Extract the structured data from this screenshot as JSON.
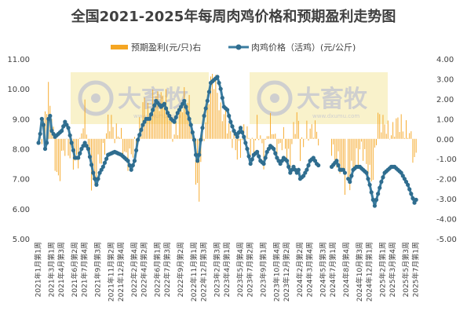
{
  "chart_data": {
    "type": "bar+line",
    "title": "全国2021-2025年每周肉鸡价格和预期盈利走势图",
    "legend": {
      "placement": "top",
      "entries": [
        "预期盈利(元/只)右",
        "肉鸡价格（活鸡）(元/公斤)"
      ]
    },
    "colors": {
      "profit_bar": "#f5a623",
      "price_line": "#3a7ca0",
      "price_marker": "#2f6d8f",
      "watermark_box": "#f7eeb9",
      "watermark": "#cfcfcf"
    },
    "watermarks": [
      {
        "text": "大畜牧",
        "sub": "www.dxumu.com"
      },
      {
        "text": "大畜牧",
        "sub": "www.dxumu.com"
      }
    ],
    "y_left": {
      "min": 5.0,
      "max": 11.0,
      "ticks": [
        "5.00",
        "6.00",
        "7.00",
        "8.00",
        "9.00",
        "10.00",
        "11.00"
      ]
    },
    "y_right": {
      "min": -5.0,
      "max": 4.0,
      "ticks": [
        "-5.00",
        "-4.00",
        "-3.00",
        "-2.00",
        "-1.00",
        "0.00",
        "1.00",
        "2.00",
        "3.00",
        "4.00"
      ]
    },
    "categories": [
      "2021年1月第1周",
      "2021年3月第1周",
      "2021年4月第3周",
      "2021年6月第2周",
      "2021年7月第4周",
      "2021年9月第3周",
      "2021年11月第2周",
      "2021年12月第4周",
      "2022年2月第4周",
      "2022年4月第2周",
      "2022年6月第1周",
      "2022年7月第3周",
      "2022年9月第2周",
      "2022年11月第1周",
      "2022年12月第3周",
      "2023年2月第3周",
      "2023年4月第1周",
      "2023年5月第4周",
      "2023年7月第2周",
      "2023年9月第1周",
      "2023年10月第4周",
      "2023年12月第2周",
      "2024年2月第2周",
      "2024年3月第4周",
      "2024年5月第3周",
      "2024年7月第1周",
      "2024年8月第4周",
      "2024年10月第3周",
      "2024年12月第1周",
      "2025年2月第1周",
      "2025年3月第4周",
      "2025年5月第3周",
      "2025年7月第1周"
    ],
    "category_positions": [
      0,
      8,
      14,
      22,
      28,
      36,
      44,
      50,
      58,
      64,
      72,
      78,
      86,
      94,
      100,
      108,
      114,
      122,
      128,
      136,
      144,
      150,
      158,
      164,
      172,
      178,
      186,
      194,
      200,
      208,
      214,
      222,
      228
    ],
    "n_weeks": 236,
    "price_gaps": [
      [
        170,
        176
      ],
      [
        186,
        186
      ]
    ],
    "price_keyframes": [
      [
        0,
        8.2
      ],
      [
        1,
        8.5
      ],
      [
        2,
        9.0
      ],
      [
        3,
        8.8
      ],
      [
        4,
        8.0
      ],
      [
        5,
        8.2
      ],
      [
        6,
        9.0
      ],
      [
        7,
        9.1
      ],
      [
        8,
        8.6
      ],
      [
        10,
        8.4
      ],
      [
        12,
        8.5
      ],
      [
        14,
        8.6
      ],
      [
        16,
        8.9
      ],
      [
        18,
        8.7
      ],
      [
        20,
        8.2
      ],
      [
        22,
        7.7
      ],
      [
        24,
        7.7
      ],
      [
        26,
        8.0
      ],
      [
        28,
        8.2
      ],
      [
        30,
        8.0
      ],
      [
        33,
        7.2
      ],
      [
        35,
        6.8
      ],
      [
        37,
        7.2
      ],
      [
        39,
        7.4
      ],
      [
        42,
        7.8
      ],
      [
        46,
        7.9
      ],
      [
        50,
        7.8
      ],
      [
        54,
        7.6
      ],
      [
        56,
        7.3
      ],
      [
        58,
        7.6
      ],
      [
        60,
        8.3
      ],
      [
        63,
        8.8
      ],
      [
        65,
        9.0
      ],
      [
        67,
        9.0
      ],
      [
        69,
        9.3
      ],
      [
        71,
        9.6
      ],
      [
        74,
        9.4
      ],
      [
        76,
        9.5
      ],
      [
        78,
        9.2
      ],
      [
        80,
        9.0
      ],
      [
        82,
        8.9
      ],
      [
        84,
        9.2
      ],
      [
        86,
        9.4
      ],
      [
        88,
        9.6
      ],
      [
        90,
        9.2
      ],
      [
        92,
        8.8
      ],
      [
        94,
        8.3
      ],
      [
        95,
        7.8
      ],
      [
        96,
        7.6
      ],
      [
        97,
        7.8
      ],
      [
        98,
        8.3
      ],
      [
        100,
        9.1
      ],
      [
        102,
        9.6
      ],
      [
        104,
        10.2
      ],
      [
        106,
        10.3
      ],
      [
        108,
        10.4
      ],
      [
        110,
        10.0
      ],
      [
        112,
        9.4
      ],
      [
        114,
        9.3
      ],
      [
        116,
        8.9
      ],
      [
        118,
        8.6
      ],
      [
        120,
        8.4
      ],
      [
        122,
        8.7
      ],
      [
        124,
        8.4
      ],
      [
        126,
        8.0
      ],
      [
        128,
        7.5
      ],
      [
        130,
        7.8
      ],
      [
        132,
        7.9
      ],
      [
        134,
        7.6
      ],
      [
        136,
        7.5
      ],
      [
        138,
        7.9
      ],
      [
        140,
        8.1
      ],
      [
        142,
        8.0
      ],
      [
        144,
        7.7
      ],
      [
        146,
        7.5
      ],
      [
        148,
        7.7
      ],
      [
        150,
        7.6
      ],
      [
        152,
        7.2
      ],
      [
        154,
        7.4
      ],
      [
        156,
        7.2
      ],
      [
        157,
        7.3
      ],
      [
        158,
        7.0
      ],
      [
        160,
        7.1
      ],
      [
        162,
        7.3
      ],
      [
        164,
        7.6
      ],
      [
        166,
        7.7
      ],
      [
        168,
        7.5
      ],
      [
        170,
        7.4
      ],
      [
        177,
        7.4
      ],
      [
        180,
        7.6
      ],
      [
        182,
        7.3
      ],
      [
        184,
        7.3
      ],
      [
        188,
        6.9
      ],
      [
        190,
        7.3
      ],
      [
        192,
        7.4
      ],
      [
        194,
        7.4
      ],
      [
        196,
        7.3
      ],
      [
        198,
        7.2
      ],
      [
        200,
        6.8
      ],
      [
        202,
        6.3
      ],
      [
        203,
        6.1
      ],
      [
        205,
        6.5
      ],
      [
        207,
        6.9
      ],
      [
        209,
        7.2
      ],
      [
        211,
        7.3
      ],
      [
        213,
        7.4
      ],
      [
        215,
        7.4
      ],
      [
        217,
        7.3
      ],
      [
        219,
        7.2
      ],
      [
        221,
        7.0
      ],
      [
        223,
        6.8
      ],
      [
        225,
        6.5
      ],
      [
        227,
        6.2
      ],
      [
        228,
        6.3
      ]
    ],
    "profit_keyframes": [
      [
        0,
        -0.5
      ],
      [
        2,
        0.2
      ],
      [
        4,
        1.5
      ],
      [
        6,
        2.3
      ],
      [
        8,
        1.0
      ],
      [
        10,
        -1.0
      ],
      [
        12,
        -2.0
      ],
      [
        14,
        -1.2
      ],
      [
        16,
        -0.5
      ],
      [
        18,
        -0.3
      ],
      [
        20,
        -1.0
      ],
      [
        22,
        -1.5
      ],
      [
        24,
        -0.8
      ],
      [
        26,
        0.5
      ],
      [
        28,
        1.2
      ],
      [
        30,
        -0.5
      ],
      [
        32,
        -1.8
      ],
      [
        34,
        -2.5
      ],
      [
        36,
        -1.5
      ],
      [
        38,
        -0.8
      ],
      [
        40,
        -0.2
      ],
      [
        42,
        0.6
      ],
      [
        44,
        0.8
      ],
      [
        46,
        0.5
      ],
      [
        48,
        0.3
      ],
      [
        50,
        -0.2
      ],
      [
        52,
        -0.6
      ],
      [
        54,
        -0.9
      ],
      [
        56,
        -1.0
      ],
      [
        58,
        -0.5
      ],
      [
        60,
        0.3
      ],
      [
        62,
        1.2
      ],
      [
        64,
        1.6
      ],
      [
        66,
        1.5
      ],
      [
        68,
        1.7
      ],
      [
        70,
        2.0
      ],
      [
        72,
        1.9
      ],
      [
        74,
        2.3
      ],
      [
        76,
        2.0
      ],
      [
        78,
        1.5
      ],
      [
        80,
        0.8
      ],
      [
        82,
        0.3
      ],
      [
        84,
        0.5
      ],
      [
        86,
        1.6
      ],
      [
        88,
        2.3
      ],
      [
        90,
        1.9
      ],
      [
        92,
        1.0
      ],
      [
        94,
        -0.5
      ],
      [
        96,
        -2.5
      ],
      [
        97,
        -3.2
      ],
      [
        98,
        -1.0
      ],
      [
        100,
        0.2
      ],
      [
        102,
        2.0
      ],
      [
        104,
        2.8
      ],
      [
        106,
        2.8
      ],
      [
        108,
        2.6
      ],
      [
        110,
        1.4
      ],
      [
        112,
        1.0
      ],
      [
        114,
        0.8
      ],
      [
        116,
        0.5
      ],
      [
        118,
        -0.2
      ],
      [
        120,
        -1.0
      ],
      [
        122,
        -0.3
      ],
      [
        124,
        0.5
      ],
      [
        126,
        0.0
      ],
      [
        128,
        -0.4
      ],
      [
        130,
        -0.2
      ],
      [
        132,
        0.6
      ],
      [
        134,
        -0.2
      ],
      [
        136,
        -0.8
      ],
      [
        138,
        0.3
      ],
      [
        140,
        0.5
      ],
      [
        142,
        0.3
      ],
      [
        144,
        -0.3
      ],
      [
        146,
        -0.5
      ],
      [
        148,
        -0.1
      ],
      [
        150,
        -0.6
      ],
      [
        152,
        -1.0
      ],
      [
        154,
        0.2
      ],
      [
        156,
        1.0
      ],
      [
        157,
        1.0
      ],
      [
        158,
        -0.4
      ],
      [
        160,
        -0.3
      ],
      [
        162,
        0.2
      ],
      [
        164,
        0.6
      ],
      [
        166,
        0.7
      ],
      [
        168,
        0.1
      ],
      [
        170,
        -0.3
      ],
      [
        177,
        -0.3
      ],
      [
        180,
        -1.0
      ],
      [
        182,
        -1.6
      ],
      [
        184,
        -2.0
      ],
      [
        188,
        -2.2
      ],
      [
        190,
        -1.5
      ],
      [
        192,
        -0.8
      ],
      [
        194,
        -0.5
      ],
      [
        196,
        -0.8
      ],
      [
        198,
        -1.3
      ],
      [
        200,
        -1.6
      ],
      [
        202,
        -2.0
      ],
      [
        203,
        -1.2
      ],
      [
        205,
        1.2
      ],
      [
        207,
        1.1
      ],
      [
        209,
        0.6
      ],
      [
        211,
        0.2
      ],
      [
        213,
        0.5
      ],
      [
        215,
        0.7
      ],
      [
        217,
        0.6
      ],
      [
        219,
        0.8
      ],
      [
        221,
        0.6
      ],
      [
        223,
        0.3
      ],
      [
        225,
        -0.2
      ],
      [
        227,
        -1.0
      ],
      [
        228,
        -0.6
      ]
    ]
  }
}
